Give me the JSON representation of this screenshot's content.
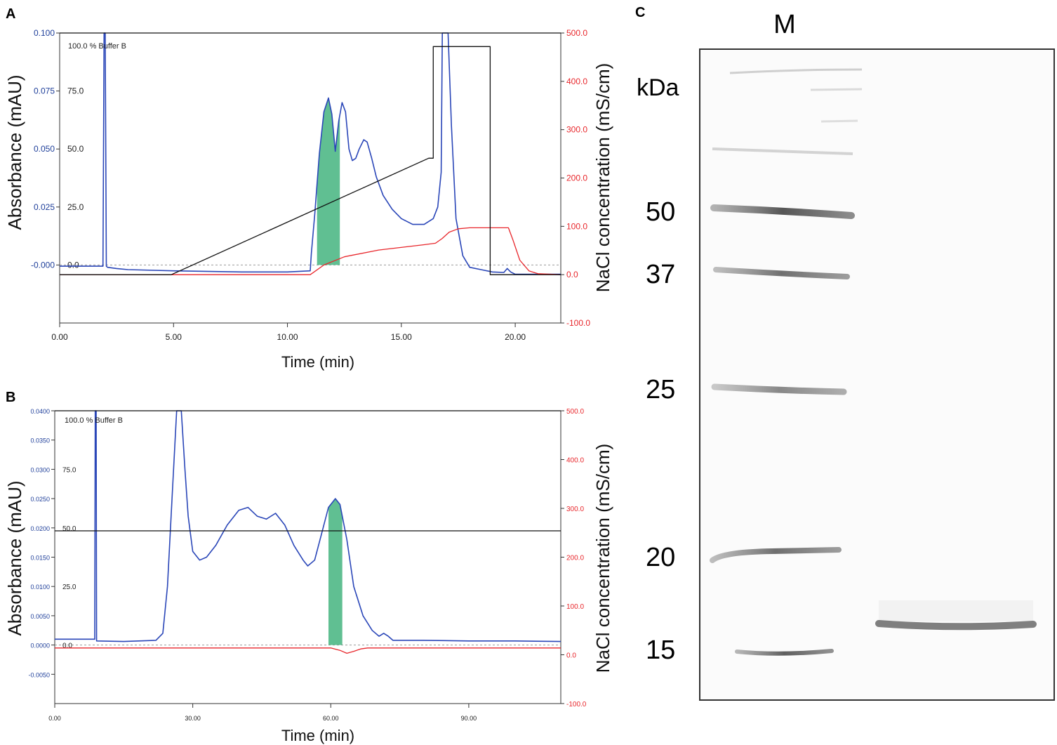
{
  "figure": {
    "panel_a_label": "A",
    "panel_b_label": "B",
    "panel_c_label": "C"
  },
  "chart_data": [
    {
      "panel": "A",
      "type": "line",
      "xlabel": "Time (min)",
      "ylabel_left": "Absorbance (mAU)",
      "ylabel_right": "NaCl concentration (mS/cm)",
      "buffer_note": "100.0 % Buffer B",
      "xlim": [
        0,
        22
      ],
      "x_ticks": [
        "0.00",
        "5.00",
        "10.00",
        "15.00",
        "20.00"
      ],
      "x_tick_values": [
        0,
        5,
        10,
        15,
        20
      ],
      "ylim_left": [
        -0.025,
        0.1
      ],
      "y_left_ticks": [
        "-0.000",
        "0.025",
        "0.050",
        "0.075",
        "0.100"
      ],
      "y_left_tick_values": [
        0,
        0.025,
        0.05,
        0.075,
        0.1
      ],
      "y_inner_ticks": [
        "0.0",
        "25.0",
        "50.0",
        "75.0"
      ],
      "y_inner_tick_values": [
        0,
        0.025,
        0.05,
        0.075
      ],
      "ylim_right": [
        -100,
        500
      ],
      "y_right_ticks": [
        "-100.0",
        "0.0",
        "100.0",
        "200.0",
        "300.0",
        "400.0",
        "500.0"
      ],
      "y_right_tick_values": [
        -100,
        0,
        100,
        200,
        300,
        400,
        500
      ],
      "colors": {
        "absorbance": "#2a46b8",
        "conductivity": "#e8262b",
        "buffer_b": "#111111",
        "fraction": "#4fb886"
      },
      "series": [
        {
          "name": "Absorbance",
          "axis": "left",
          "x": [
            0,
            1.9,
            1.95,
            2.0,
            2.05,
            2.1,
            2.5,
            3,
            5,
            8,
            10,
            11,
            11.05,
            11.2,
            11.4,
            11.6,
            11.8,
            11.95,
            12.1,
            12.25,
            12.4,
            12.55,
            12.7,
            12.85,
            13.0,
            13.15,
            13.35,
            13.5,
            13.7,
            13.9,
            14.2,
            14.6,
            15.0,
            15.5,
            16.0,
            16.4,
            16.6,
            16.75,
            16.8,
            16.85,
            16.95,
            17.05,
            17.2,
            17.4,
            17.7,
            18.0,
            18.5,
            19.0,
            19.5,
            19.65,
            19.8,
            20.0,
            21.0,
            22.0
          ],
          "y": [
            -0.0005,
            -0.0005,
            0.1,
            0.1,
            -0.0005,
            -0.001,
            -0.0015,
            -0.002,
            -0.0025,
            -0.003,
            -0.003,
            -0.0025,
            0.005,
            0.022,
            0.048,
            0.066,
            0.072,
            0.065,
            0.049,
            0.062,
            0.07,
            0.066,
            0.05,
            0.045,
            0.046,
            0.05,
            0.054,
            0.053,
            0.046,
            0.038,
            0.03,
            0.024,
            0.02,
            0.0175,
            0.0175,
            0.02,
            0.025,
            0.04,
            0.1,
            0.1,
            0.1,
            0.1,
            0.06,
            0.02,
            0.004,
            -0.001,
            -0.002,
            -0.003,
            -0.0032,
            -0.0015,
            -0.003,
            -0.004,
            -0.004,
            -0.004
          ]
        },
        {
          "name": "NaCl concentration",
          "axis": "right",
          "x": [
            0,
            11.0,
            11.6,
            12.5,
            14.0,
            16.0,
            16.5,
            16.8,
            17.1,
            17.5,
            18.0,
            19.7,
            19.9,
            20.2,
            20.6,
            21.0,
            22.0
          ],
          "y": [
            0,
            0,
            20,
            37,
            51,
            62,
            65,
            75,
            88,
            95,
            97,
            97,
            72,
            30,
            8,
            2,
            0
          ]
        },
        {
          "name": "Buffer B gradient",
          "axis": "right",
          "x": [
            0,
            4.9,
            16.2,
            16.2,
            16.4,
            16.4,
            18.9,
            18.9,
            22.0
          ],
          "y": [
            0,
            0,
            241,
            241,
            241,
            472,
            472,
            0,
            0
          ]
        }
      ],
      "fraction": {
        "x_start": 11.3,
        "x_end": 12.3
      }
    },
    {
      "panel": "B",
      "type": "line",
      "xlabel": "Time (min)",
      "ylabel_left": "Absorbance (mAU)",
      "ylabel_right": "NaCl concentration (mS/cm)",
      "buffer_note": "100.0 % Buffer B",
      "xlim": [
        0,
        110
      ],
      "x_ticks": [
        "0.00",
        "30.00",
        "60.00",
        "90.00"
      ],
      "x_tick_values": [
        0,
        30,
        60,
        90
      ],
      "ylim_left": [
        -0.01,
        0.04
      ],
      "y_left_ticks": [
        "-0.0050",
        "0.0000",
        "0.0050",
        "0.0100",
        "0.0150",
        "0.0200",
        "0.0250",
        "0.0300",
        "0.0350",
        "0.0400"
      ],
      "y_left_tick_values": [
        -0.005,
        0,
        0.005,
        0.01,
        0.015,
        0.02,
        0.025,
        0.03,
        0.035,
        0.04
      ],
      "y_inner_ticks": [
        "0.0",
        "25.0",
        "50.0",
        "75.0"
      ],
      "y_inner_tick_values": [
        0,
        0.01,
        0.02,
        0.03
      ],
      "ylim_right": [
        -100,
        500
      ],
      "y_right_ticks": [
        "-100.0",
        "0.0",
        "100.0",
        "200.0",
        "300.0",
        "400.0",
        "500.0"
      ],
      "y_right_tick_values": [
        -100,
        0,
        100,
        200,
        300,
        400,
        500
      ],
      "colors": {
        "absorbance": "#2a46b8",
        "conductivity": "#e8262b",
        "buffer_b": "#111111",
        "fraction": "#4fb886"
      },
      "series": [
        {
          "name": "Absorbance",
          "axis": "left",
          "x": [
            0,
            8.7,
            8.8,
            9.0,
            9.1,
            15,
            22,
            23.5,
            24.5,
            25.5,
            26.5,
            27.5,
            28.3,
            29,
            30,
            31.5,
            33,
            35,
            37.5,
            40,
            42,
            44,
            46,
            48,
            50,
            52,
            54,
            55,
            56.5,
            58,
            59.5,
            61,
            62,
            63.5,
            65,
            67,
            69,
            70.5,
            71.5,
            72.5,
            73.5,
            80,
            90,
            100,
            110
          ],
          "y": [
            0.001,
            0.001,
            0.04,
            0.04,
            0.0007,
            0.0006,
            0.0008,
            0.002,
            0.01,
            0.025,
            0.04,
            0.04,
            0.03,
            0.022,
            0.016,
            0.0145,
            0.015,
            0.017,
            0.0205,
            0.023,
            0.0235,
            0.022,
            0.0215,
            0.0225,
            0.0205,
            0.017,
            0.0145,
            0.0135,
            0.0145,
            0.019,
            0.0235,
            0.025,
            0.024,
            0.018,
            0.01,
            0.005,
            0.0025,
            0.0015,
            0.002,
            0.0015,
            0.0008,
            0.0008,
            0.0007,
            0.0007,
            0.0006
          ]
        },
        {
          "name": "NaCl concentration",
          "axis": "right",
          "x": [
            0,
            60,
            62,
            63.5,
            65,
            66.5,
            68,
            110
          ],
          "y": [
            14,
            14,
            9,
            3,
            7,
            12,
            14,
            14
          ]
        },
        {
          "name": "Buffer B gradient",
          "axis": "left",
          "x": [
            0,
            110
          ],
          "y": [
            0.0195,
            0.0195
          ]
        }
      ],
      "fraction": {
        "x_start": 59.5,
        "x_end": 62.5
      }
    }
  ],
  "gel": {
    "lane_label": "M",
    "unit_label": "kDa",
    "marker_labels": [
      "50",
      "37",
      "25",
      "20",
      "15"
    ],
    "marker_values_kda": [
      50,
      37,
      25,
      20,
      15
    ],
    "sample_band_kda": 16.5
  }
}
